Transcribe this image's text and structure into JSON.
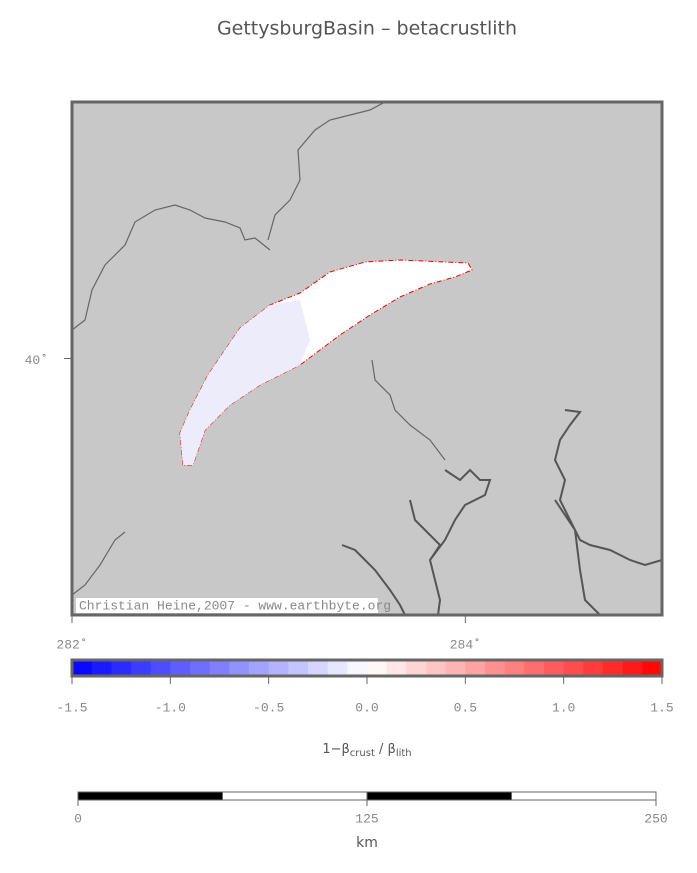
{
  "title": "GettysburgBasin – betacrustlith",
  "credit": "Christian Heine,2007 - www.earthbyte.org",
  "map": {
    "lonlim": [
      282,
      285
    ],
    "latlim": [
      39,
      41
    ],
    "lonticks": [
      {
        "value": 282,
        "label": "282˚"
      },
      {
        "value": 284,
        "label": "284˚"
      }
    ],
    "latticks": [
      {
        "value": 40,
        "label": "40˚"
      }
    ]
  },
  "colorbar": {
    "lim": [
      -1.5,
      1.5
    ],
    "step": 0.1,
    "colors": [
      "#0000ff",
      "#ffffff",
      "#ff0000"
    ],
    "ticks": [
      -1.5,
      {
        "value": -1,
        "label": "-1.0"
      },
      -0.5,
      {
        "value": 0,
        "label": "0.0"
      },
      0.5,
      {
        "value": 1,
        "label": "1.0"
      },
      1.5
    ],
    "label": [
      "1−β",
      "crust",
      " / β",
      "lith"
    ]
  },
  "scalebar": {
    "lim": [
      0,
      250
    ],
    "ticks": [
      0,
      125,
      250
    ],
    "segments": 4,
    "label": "km"
  }
}
